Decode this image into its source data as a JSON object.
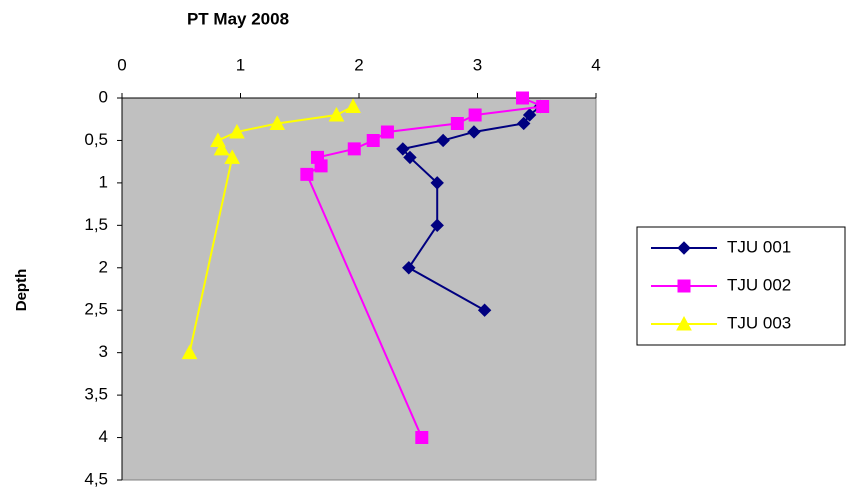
{
  "chart_data": {
    "type": "scatter",
    "title": "PT May 2008",
    "y_label": "Depth",
    "xlim": [
      0,
      4
    ],
    "xticks": [
      0,
      1,
      2,
      3,
      4
    ],
    "ylim": [
      0,
      4.5
    ],
    "y_inverted": true,
    "yticks": [
      0,
      {
        "value": 0.5,
        "label": "0,5"
      },
      1,
      {
        "value": 1.5,
        "label": "1,5"
      },
      2,
      {
        "value": 2.5,
        "label": "2,5"
      },
      3,
      {
        "value": 3.5,
        "label": "3,5"
      },
      4,
      {
        "value": 4.5,
        "label": "4,5"
      }
    ],
    "legend": "right",
    "series": [
      {
        "name": "TJU 001",
        "color": "#000080",
        "marker": "diamond",
        "x": [
          3.53,
          3.44,
          3.39,
          2.97,
          2.71,
          2.37,
          2.43,
          2.66,
          2.66,
          2.42,
          3.06
        ],
        "values": [
          0.1,
          0.2,
          0.3,
          0.4,
          0.5,
          0.6,
          0.7,
          1.0,
          1.5,
          2.0,
          2.5
        ]
      },
      {
        "name": "TJU 002",
        "color": "#ff00ff",
        "marker": "square",
        "x": [
          3.38,
          3.55,
          2.98,
          2.83,
          2.24,
          2.12,
          1.96,
          1.65,
          1.68,
          1.56,
          2.53
        ],
        "values": [
          0,
          0.1,
          0.2,
          0.3,
          0.4,
          0.5,
          0.6,
          0.7,
          0.8,
          0.9,
          4.0
        ]
      },
      {
        "name": "TJU 003",
        "color": "#ffff00",
        "marker": "triangle",
        "x": [
          1.95,
          1.81,
          1.31,
          0.97,
          0.81,
          0.84,
          0.93,
          0.57
        ],
        "values": [
          0.1,
          0.2,
          0.3,
          0.4,
          0.5,
          0.6,
          0.7,
          3.0
        ]
      }
    ]
  }
}
